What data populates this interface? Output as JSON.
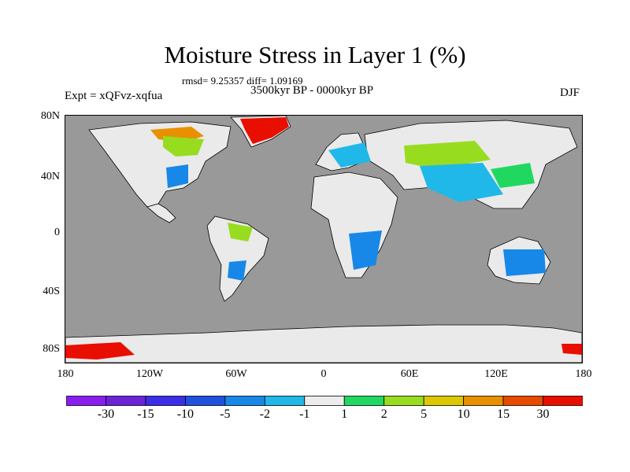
{
  "title": "Moisture Stress in Layer 1 (%)",
  "stats": "rmsd= 9.25357 diff= 1.09169",
  "period": "3500kyr BP - 0000kyr BP",
  "experiment": "Expt = xQFvz-xqfua",
  "season": "DJF",
  "map": {
    "ocean_color": "#999999",
    "land_color": "#eaeaea",
    "lat_labels": [
      "80N",
      "40N",
      "0",
      "40S",
      "80S"
    ],
    "lon_labels": [
      "180",
      "120W",
      "60W",
      "0",
      "60E",
      "120E",
      "180"
    ]
  },
  "colorbar": {
    "colors": [
      "#8a1cf0",
      "#6a24d8",
      "#3a2ee8",
      "#2050e0",
      "#1888e8",
      "#20b8e8",
      "#ececec",
      "#20d860",
      "#98dc20",
      "#dcc800",
      "#e89000",
      "#e84a00",
      "#e80e00"
    ],
    "labels": [
      "-30",
      "-15",
      "-10",
      "-5",
      "-2",
      "-1",
      "1",
      "2",
      "5",
      "10",
      "15",
      "30"
    ]
  }
}
